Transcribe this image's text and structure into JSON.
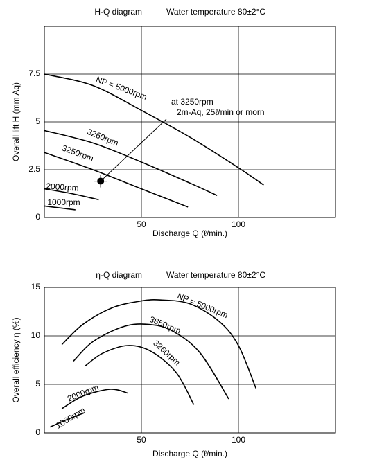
{
  "chart_data": [
    {
      "type": "line",
      "title": "H-Q diagram",
      "subtitle": "Water temperature 80±2°C",
      "x_label": "Discharge Q (ℓ/min.)",
      "y_label": "Overall lift H (mm Aq)",
      "xlim": [
        0,
        150
      ],
      "ylim": [
        0,
        10
      ],
      "xticks": [
        50,
        100
      ],
      "yticks": [
        0,
        2.5,
        5,
        7.5
      ],
      "grid": true,
      "series": [
        {
          "name": "NP = 5000rpm",
          "color": "#000000",
          "x": [
            0,
            25,
            50,
            75,
            100,
            113
          ],
          "values": [
            7.5,
            6.9,
            5.6,
            4.2,
            2.6,
            1.7
          ]
        },
        {
          "name": "3260rpm",
          "color": "#000000",
          "x": [
            0,
            25,
            50,
            75,
            89
          ],
          "values": [
            4.55,
            3.9,
            2.9,
            1.8,
            1.15
          ]
        },
        {
          "name": "3250rpm",
          "color": "#000000",
          "x": [
            0,
            25,
            50,
            74
          ],
          "values": [
            3.4,
            2.5,
            1.5,
            0.55
          ]
        },
        {
          "name": "2000rpm",
          "color": "#000000",
          "x": [
            0,
            14,
            28
          ],
          "values": [
            1.5,
            1.25,
            0.93
          ]
        },
        {
          "name": "1000rpm",
          "color": "#000000",
          "x": [
            0,
            16
          ],
          "values": [
            0.6,
            0.4
          ]
        }
      ],
      "annotations": [
        {
          "text": [
            "at 3250rpm",
            "2m-Aq, 25ℓ/min or morn"
          ],
          "x": 29,
          "y": 1.9
        }
      ]
    },
    {
      "type": "line",
      "title": "η-Q diagram",
      "subtitle": "Water temperature 80±2°C",
      "x_label": "Discharge Q (ℓ/min.)",
      "y_label": "Overall efficiency η (%)",
      "xlim": [
        0,
        150
      ],
      "ylim": [
        0,
        15
      ],
      "xticks": [
        50,
        100
      ],
      "yticks": [
        0,
        5,
        10,
        15
      ],
      "grid": true,
      "series": [
        {
          "name": "NP = 5000rpm",
          "color": "#000000",
          "x": [
            9,
            20,
            35,
            50,
            60,
            75,
            90,
            100,
            109
          ],
          "values": [
            9.1,
            11.2,
            12.9,
            13.6,
            13.7,
            13.3,
            11.5,
            9,
            4.6
          ]
        },
        {
          "name": "3850rpm",
          "color": "#000000",
          "x": [
            15,
            25,
            40,
            52,
            65,
            80,
            95
          ],
          "values": [
            7.4,
            9.4,
            10.9,
            11.2,
            10.6,
            8.3,
            3.5
          ]
        },
        {
          "name": "3260rpm",
          "color": "#000000",
          "x": [
            21,
            30,
            43,
            55,
            68,
            77
          ],
          "values": [
            6.9,
            8.2,
            9.0,
            8.4,
            6.2,
            2.9
          ]
        },
        {
          "name": "2000rpm",
          "color": "#000000",
          "x": [
            9,
            20,
            34,
            43
          ],
          "values": [
            2.5,
            3.8,
            4.5,
            4.1
          ]
        },
        {
          "name": "1000rpm",
          "color": "#000000",
          "x": [
            3,
            12,
            21
          ],
          "values": [
            0.6,
            1.4,
            2.1
          ]
        }
      ]
    }
  ]
}
